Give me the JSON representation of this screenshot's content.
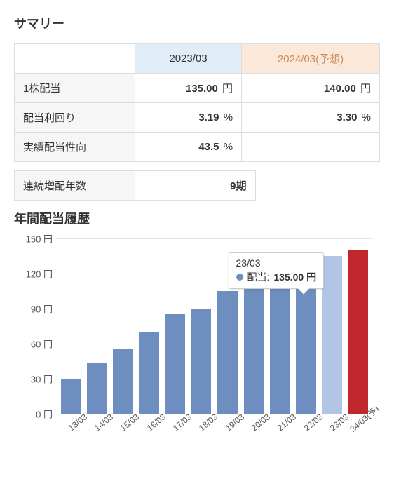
{
  "summary": {
    "title": "サマリー",
    "headers": {
      "current": "2023/03",
      "forecast": "2024/03(予想)"
    },
    "rows": [
      {
        "label": "1株配当",
        "current": "135.00",
        "current_unit": "円",
        "forecast": "140.00",
        "forecast_unit": "円"
      },
      {
        "label": "配当利回り",
        "current": "3.19",
        "current_unit": "%",
        "forecast": "3.30",
        "forecast_unit": "%"
      },
      {
        "label": "実績配当性向",
        "current": "43.5",
        "current_unit": "%",
        "forecast": "",
        "forecast_unit": ""
      }
    ],
    "streak": {
      "label": "連続増配年数",
      "value": "9期"
    }
  },
  "history": {
    "title": "年間配当履歴",
    "chart": {
      "type": "bar",
      "y_unit": "円",
      "ylim": [
        0,
        150
      ],
      "ytick_step": 30,
      "background_color": "#ffffff",
      "grid_color": "#e6e6e6",
      "baseline_color": "#999999",
      "text_color": "#555555",
      "categories": [
        "13/03",
        "14/03",
        "15/03",
        "16/03",
        "17/03",
        "18/03",
        "19/03",
        "20/03",
        "21/03",
        "22/03",
        "23/03",
        "24/03(予)"
      ],
      "values": [
        30,
        43,
        56,
        70,
        85,
        90,
        105,
        110,
        115,
        125,
        135,
        140
      ],
      "bar_colors": [
        "#6d8ebf",
        "#6d8ebf",
        "#6d8ebf",
        "#6d8ebf",
        "#6d8ebf",
        "#6d8ebf",
        "#6d8ebf",
        "#6d8ebf",
        "#6d8ebf",
        "#6d8ebf",
        "#b0c6e4",
        "#c1282d"
      ],
      "bar_width": 0.85,
      "label_fontsize": 12,
      "axis_fontsize": 13
    },
    "tooltip": {
      "category": "23/03",
      "series_label": "配当:",
      "value": "135.00",
      "unit": "円",
      "dot_color": "#6d8ebf",
      "attach_index": 10
    }
  }
}
